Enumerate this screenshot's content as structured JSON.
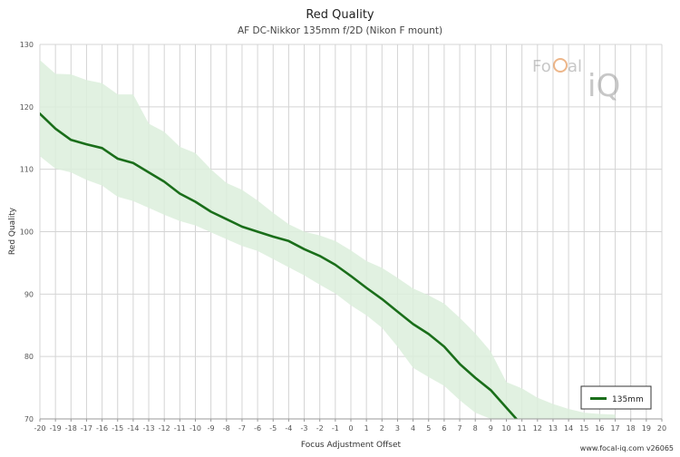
{
  "chart_data": {
    "type": "line",
    "title": "Red Quality",
    "subtitle": "AF DC-Nikkor 135mm f/2D (Nikon F mount)",
    "xlabel": "Focus Adjustment Offset",
    "ylabel": "Red Quality",
    "xlim": [
      -20,
      20
    ],
    "ylim": [
      70,
      130
    ],
    "x_ticks": [
      "-20",
      "-19",
      "-18",
      "-17",
      "-16",
      "-15",
      "-14",
      "-13",
      "-12",
      "-11",
      "-10",
      "-9",
      "-8",
      "-7",
      "-6",
      "-5",
      "-4",
      "-3",
      "-2",
      "-1",
      "0",
      "1",
      "2",
      "3",
      "4",
      "5",
      "6",
      "7",
      "8",
      "9",
      "10",
      "11",
      "12",
      "13",
      "14",
      "15",
      "16",
      "17",
      "18",
      "19",
      "20"
    ],
    "y_ticks": [
      "70",
      "80",
      "90",
      "100",
      "110",
      "120",
      "130"
    ],
    "grid": true,
    "legend_position": "bottom-right",
    "series": [
      {
        "name": "135mm",
        "color": "#1a6e1a",
        "x": [
          -20,
          -19,
          -18,
          -17,
          -16,
          -15,
          -14,
          -13,
          -12,
          -11,
          -10,
          -9,
          -8,
          -7,
          -6,
          -5,
          -4,
          -3,
          -2,
          -1,
          0,
          1,
          2,
          3,
          4,
          5,
          6,
          7,
          8,
          9,
          10
        ],
        "y": [
          118.9,
          116.5,
          114.7,
          114.0,
          113.4,
          111.7,
          111.0,
          109.5,
          108.0,
          106.1,
          104.8,
          103.2,
          102.0,
          100.8,
          100.0,
          99.2,
          98.5,
          97.2,
          96.1,
          94.7,
          92.9,
          91.0,
          89.2,
          87.2,
          85.2,
          83.6,
          81.6,
          78.8,
          76.6,
          74.6,
          71.8
        ],
        "band_upper": [
          127.5,
          125.3,
          125.2,
          124.3,
          123.8,
          122.0,
          122.0,
          117.3,
          116.0,
          113.6,
          112.6,
          110.0,
          107.8,
          106.7,
          105.0,
          103.0,
          101.2,
          100.0,
          99.4,
          98.5,
          97.0,
          95.3,
          94.2,
          92.6,
          90.9,
          89.8,
          88.5,
          86.2,
          83.7,
          80.8,
          75.9
        ],
        "band_lower": [
          112.1,
          110.1,
          109.5,
          108.3,
          107.4,
          105.6,
          104.9,
          103.8,
          102.7,
          101.7,
          101.0,
          99.9,
          98.8,
          97.7,
          96.9,
          95.6,
          94.3,
          93.0,
          91.5,
          90.1,
          88.2,
          86.6,
          84.6,
          81.6,
          78.2,
          76.7,
          75.3,
          73.0,
          71.0,
          70.0,
          70.0
        ],
        "band_tail_x": [
          10,
          11,
          12,
          13,
          14,
          15,
          16,
          17
        ],
        "band_tail_upper": [
          75.9,
          74.9,
          73.4,
          72.4,
          71.6,
          71.0,
          70.8,
          70.7
        ]
      }
    ]
  },
  "style": {
    "band_color": "#dceedc",
    "grid_color": "#d4d4d4",
    "axis_color": "#999999",
    "text_color": "#333333",
    "tick_text_color": "#555555"
  },
  "logo": {
    "text": "FoCal iQ"
  },
  "footer": {
    "text": "www.focal-iq.com  v26065"
  }
}
